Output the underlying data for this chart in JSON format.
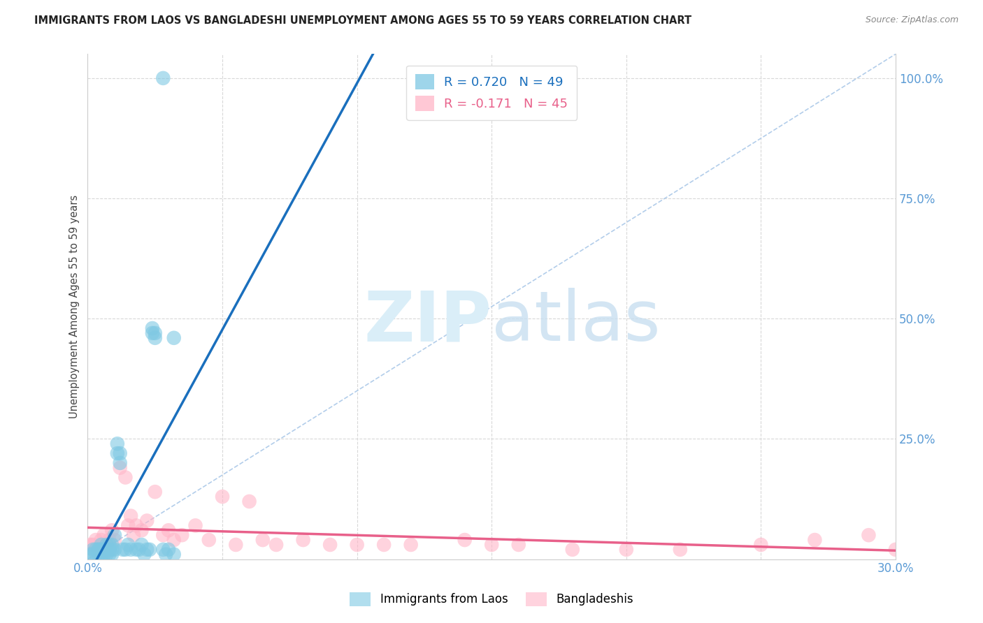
{
  "title": "IMMIGRANTS FROM LAOS VS BANGLADESHI UNEMPLOYMENT AMONG AGES 55 TO 59 YEARS CORRELATION CHART",
  "source": "Source: ZipAtlas.com",
  "ylabel": "Unemployment Among Ages 55 to 59 years",
  "xlim": [
    0.0,
    0.3
  ],
  "ylim": [
    0.0,
    1.05
  ],
  "xticks": [
    0.0,
    0.05,
    0.1,
    0.15,
    0.2,
    0.25,
    0.3
  ],
  "xtick_labels": [
    "0.0%",
    "",
    "",
    "",
    "",
    "",
    "30.0%"
  ],
  "yticks": [
    0.0,
    0.25,
    0.5,
    0.75,
    1.0
  ],
  "ytick_labels": [
    "",
    "25.0%",
    "50.0%",
    "75.0%",
    "100.0%"
  ],
  "r_laos": 0.72,
  "n_laos": 49,
  "r_bangladeshi": -0.171,
  "n_bangladeshi": 45,
  "laos_color": "#7ec8e3",
  "bangladeshi_color": "#ffb6c8",
  "laos_line_color": "#1a6fbd",
  "bangladeshi_line_color": "#e8608a",
  "diagonal_color": "#aac8e8",
  "grid_color": "#d8d8d8",
  "axis_color": "#5b9bd5",
  "watermark_color": "#daeef8",
  "legend_label_laos": "Immigrants from Laos",
  "legend_label_bangladeshi": "Bangladeshis",
  "laos_x": [
    0.001,
    0.002,
    0.002,
    0.003,
    0.003,
    0.004,
    0.004,
    0.004,
    0.005,
    0.005,
    0.005,
    0.006,
    0.006,
    0.006,
    0.007,
    0.007,
    0.007,
    0.008,
    0.008,
    0.008,
    0.009,
    0.009,
    0.009,
    0.01,
    0.01,
    0.011,
    0.011,
    0.012,
    0.012,
    0.013,
    0.014,
    0.015,
    0.016,
    0.018,
    0.019,
    0.02,
    0.021,
    0.022,
    0.023,
    0.024,
    0.024,
    0.025,
    0.025,
    0.028,
    0.029,
    0.03,
    0.032,
    0.032,
    0.028
  ],
  "laos_y": [
    0.01,
    0.02,
    0.01,
    0.02,
    0.01,
    0.02,
    0.01,
    0.02,
    0.02,
    0.01,
    0.03,
    0.02,
    0.01,
    0.02,
    0.02,
    0.01,
    0.03,
    0.02,
    0.03,
    0.01,
    0.03,
    0.02,
    0.01,
    0.05,
    0.02,
    0.22,
    0.24,
    0.2,
    0.22,
    0.02,
    0.02,
    0.03,
    0.02,
    0.02,
    0.02,
    0.03,
    0.01,
    0.02,
    0.02,
    0.47,
    0.48,
    0.47,
    0.46,
    0.02,
    0.01,
    0.02,
    0.01,
    0.46,
    1.0
  ],
  "bangladeshi_x": [
    0.001,
    0.002,
    0.003,
    0.004,
    0.005,
    0.006,
    0.007,
    0.008,
    0.009,
    0.01,
    0.012,
    0.014,
    0.015,
    0.016,
    0.017,
    0.018,
    0.02,
    0.022,
    0.025,
    0.028,
    0.03,
    0.032,
    0.035,
    0.04,
    0.045,
    0.05,
    0.055,
    0.06,
    0.065,
    0.07,
    0.08,
    0.09,
    0.1,
    0.11,
    0.12,
    0.14,
    0.15,
    0.16,
    0.18,
    0.2,
    0.22,
    0.25,
    0.27,
    0.29,
    0.3
  ],
  "bangladeshi_y": [
    0.03,
    0.03,
    0.04,
    0.02,
    0.04,
    0.05,
    0.03,
    0.04,
    0.06,
    0.04,
    0.19,
    0.17,
    0.07,
    0.09,
    0.05,
    0.07,
    0.06,
    0.08,
    0.14,
    0.05,
    0.06,
    0.04,
    0.05,
    0.07,
    0.04,
    0.13,
    0.03,
    0.12,
    0.04,
    0.03,
    0.04,
    0.03,
    0.03,
    0.03,
    0.03,
    0.04,
    0.03,
    0.03,
    0.02,
    0.02,
    0.02,
    0.03,
    0.04,
    0.05,
    0.02
  ]
}
